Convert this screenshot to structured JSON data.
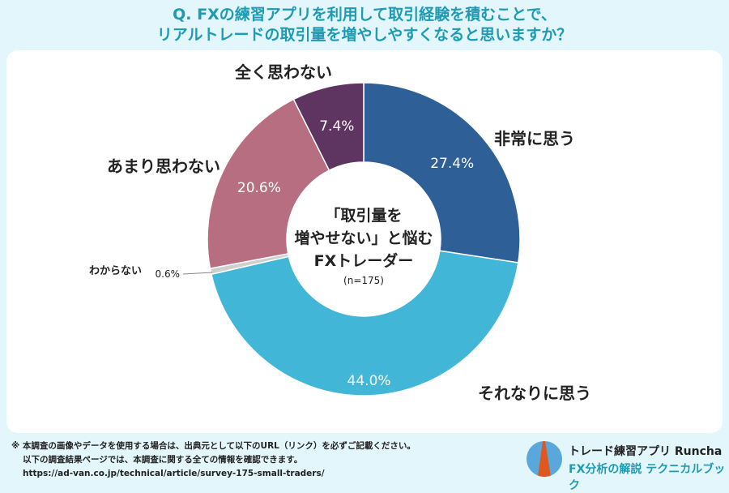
{
  "title": {
    "line1": "Q.  FXの練習アプリを利用して取引経験を積むことで、",
    "line2": "リアルトレードの取引量を増やしやすくなると思いますか？"
  },
  "chart_data": {
    "type": "pie",
    "donut": true,
    "center_text": [
      "「取引量を",
      "増やせない」と悩む",
      "FXトレーダー",
      "(n=175)"
    ],
    "categories": [
      "非常に思う",
      "それなりに思う",
      "わからない",
      "あまり思わない",
      "全く思わない"
    ],
    "values": [
      27.4,
      44.0,
      0.6,
      20.6,
      7.4
    ],
    "value_labels": [
      "27.4%",
      "44.0%",
      "0.6%",
      "20.6%",
      "7.4%"
    ],
    "colors": [
      "#2e5f96",
      "#41b6d6",
      "#cfcfcf",
      "#b76e80",
      "#5e3560"
    ]
  },
  "footer": {
    "line1": "※ 本調査の画像やデータを使用する場合は、出典元として以下のURL（リンク）を必ずご記載ください。",
    "line2": "以下の調査結果ページでは、本調査に関する全ての情報を確認できます。",
    "url": "https://ad-van.co.jp/technical/article/survey-175-small-traders/"
  },
  "brand": {
    "line1": "トレード練習アプリ Runcha",
    "line2": "FX分析の解説 テクニカルブック"
  }
}
